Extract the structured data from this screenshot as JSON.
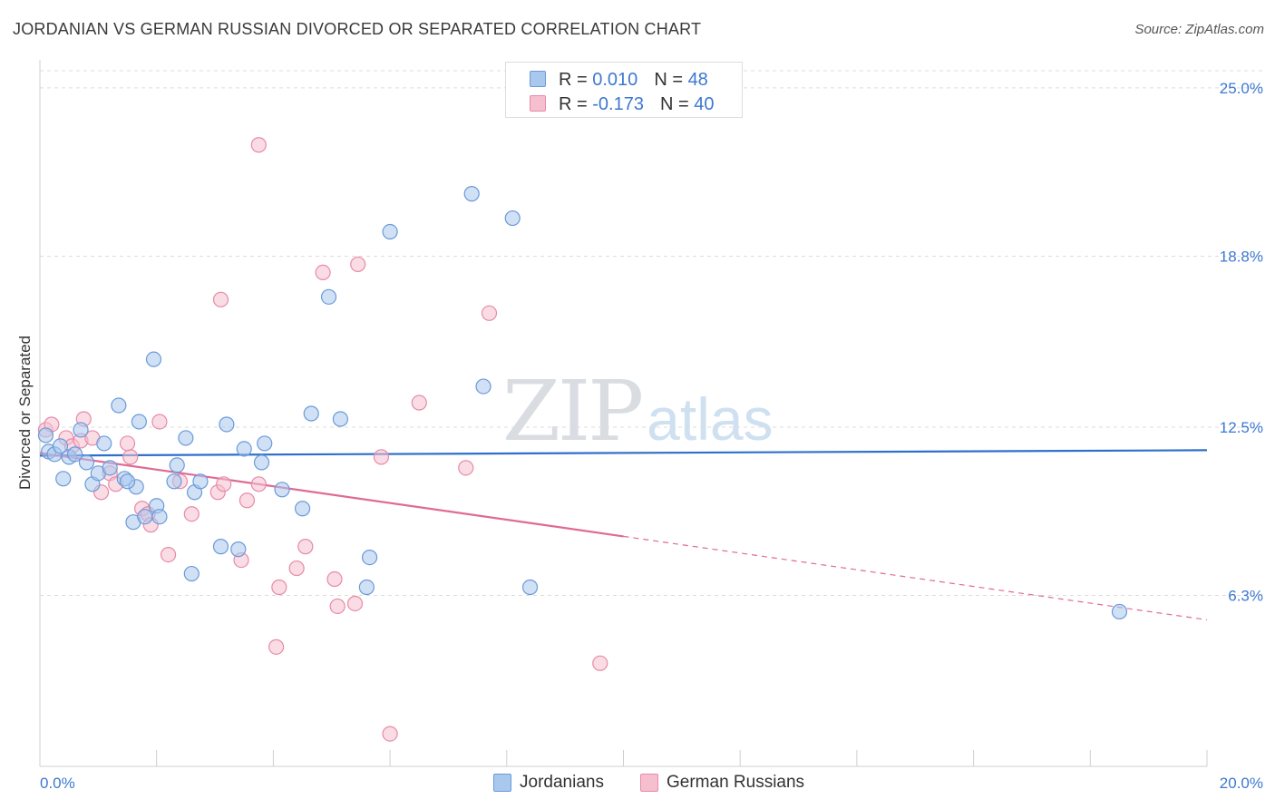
{
  "title": "JORDANIAN VS GERMAN RUSSIAN DIVORCED OR SEPARATED CORRELATION CHART",
  "source": "Source: ZipAtlas.com",
  "watermark": {
    "zip": "ZIP",
    "atlas": "atlas"
  },
  "legend": {
    "rows": [
      {
        "r_label": "R = ",
        "r_value": "0.010",
        "n_label": "N = ",
        "n_value": "48"
      },
      {
        "r_label": "R = ",
        "r_value": "-0.173",
        "n_label": "N = ",
        "n_value": "40"
      }
    ]
  },
  "bottom_legend": {
    "jordanians": "Jordanians",
    "german_russians": "German Russians"
  },
  "colors": {
    "jordanian_fill": "#a9c8ee",
    "jordanian_stroke": "#6a9ad8",
    "jordanian_line": "#2f6fcb",
    "german_fill": "#f6bfd0",
    "german_stroke": "#e78aa8",
    "german_line": "#e06a95",
    "tick_label": "#3d78d0",
    "grid": "#dcdcdc"
  },
  "chart_data": {
    "type": "scatter",
    "title": "JORDANIAN VS GERMAN RUSSIAN DIVORCED OR SEPARATED CORRELATION CHART",
    "xlabel": "",
    "ylabel": "Divorced or Separated",
    "xlim": [
      0,
      20
    ],
    "ylim": [
      0,
      25.9
    ],
    "x_tick_labels": [
      "0.0%",
      "20.0%"
    ],
    "y_ticks": [
      6.3,
      12.5,
      18.8,
      25.0
    ],
    "y_tick_labels": [
      "6.3%",
      "12.5%",
      "18.8%",
      "25.0%"
    ],
    "grid": true,
    "series": [
      {
        "name": "Jordanians",
        "r": 0.01,
        "n": 48,
        "trend": {
          "x": [
            0,
            20
          ],
          "y": [
            11.45,
            11.65
          ],
          "dashed_from": null
        },
        "points": [
          [
            0.1,
            12.2
          ],
          [
            0.15,
            11.6
          ],
          [
            0.25,
            11.5
          ],
          [
            0.35,
            11.8
          ],
          [
            0.4,
            10.6
          ],
          [
            0.5,
            11.4
          ],
          [
            0.7,
            12.4
          ],
          [
            0.8,
            11.2
          ],
          [
            0.9,
            10.4
          ],
          [
            1.0,
            10.8
          ],
          [
            1.1,
            11.9
          ],
          [
            1.2,
            11.0
          ],
          [
            1.35,
            13.3
          ],
          [
            1.45,
            10.6
          ],
          [
            1.6,
            9.0
          ],
          [
            1.65,
            10.3
          ],
          [
            1.7,
            12.7
          ],
          [
            1.8,
            9.2
          ],
          [
            1.95,
            15.0
          ],
          [
            2.0,
            9.6
          ],
          [
            2.05,
            9.2
          ],
          [
            2.3,
            10.5
          ],
          [
            2.35,
            11.1
          ],
          [
            2.5,
            12.1
          ],
          [
            2.6,
            7.1
          ],
          [
            2.65,
            10.1
          ],
          [
            2.75,
            10.5
          ],
          [
            3.1,
            8.1
          ],
          [
            3.2,
            12.6
          ],
          [
            3.4,
            8.0
          ],
          [
            3.5,
            11.7
          ],
          [
            3.8,
            11.2
          ],
          [
            3.85,
            11.9
          ],
          [
            4.15,
            10.2
          ],
          [
            4.5,
            9.5
          ],
          [
            4.65,
            13.0
          ],
          [
            4.95,
            17.3
          ],
          [
            5.15,
            12.8
          ],
          [
            5.6,
            6.6
          ],
          [
            5.65,
            7.7
          ],
          [
            6.0,
            19.7
          ],
          [
            7.4,
            21.1
          ],
          [
            7.6,
            14.0
          ],
          [
            8.1,
            20.2
          ],
          [
            8.4,
            6.6
          ],
          [
            18.5,
            5.7
          ],
          [
            0.6,
            11.5
          ],
          [
            1.5,
            10.5
          ]
        ]
      },
      {
        "name": "German Russians",
        "r": -0.173,
        "n": 40,
        "trend": {
          "x": [
            0,
            20
          ],
          "y": [
            11.55,
            5.4
          ],
          "dashed_from": 10
        },
        "points": [
          [
            0.1,
            12.4
          ],
          [
            0.2,
            12.6
          ],
          [
            0.45,
            12.1
          ],
          [
            0.55,
            11.8
          ],
          [
            0.7,
            12.0
          ],
          [
            0.75,
            12.8
          ],
          [
            0.9,
            12.1
          ],
          [
            1.05,
            10.1
          ],
          [
            1.2,
            10.8
          ],
          [
            1.3,
            10.4
          ],
          [
            1.55,
            11.4
          ],
          [
            1.75,
            9.5
          ],
          [
            1.85,
            9.3
          ],
          [
            1.9,
            8.9
          ],
          [
            1.5,
            11.9
          ],
          [
            2.05,
            12.7
          ],
          [
            2.2,
            7.8
          ],
          [
            2.4,
            10.5
          ],
          [
            2.6,
            9.3
          ],
          [
            3.05,
            10.1
          ],
          [
            3.15,
            10.4
          ],
          [
            3.1,
            17.2
          ],
          [
            3.45,
            7.6
          ],
          [
            3.55,
            9.8
          ],
          [
            3.75,
            10.4
          ],
          [
            3.75,
            22.9
          ],
          [
            4.1,
            6.6
          ],
          [
            4.05,
            4.4
          ],
          [
            4.4,
            7.3
          ],
          [
            4.55,
            8.1
          ],
          [
            4.85,
            18.2
          ],
          [
            5.05,
            6.9
          ],
          [
            5.1,
            5.9
          ],
          [
            5.4,
            6.0
          ],
          [
            5.45,
            18.5
          ],
          [
            5.85,
            11.4
          ],
          [
            6.0,
            1.2
          ],
          [
            6.5,
            13.4
          ],
          [
            7.3,
            11.0
          ],
          [
            7.7,
            16.7
          ],
          [
            9.6,
            3.8
          ]
        ]
      }
    ]
  }
}
